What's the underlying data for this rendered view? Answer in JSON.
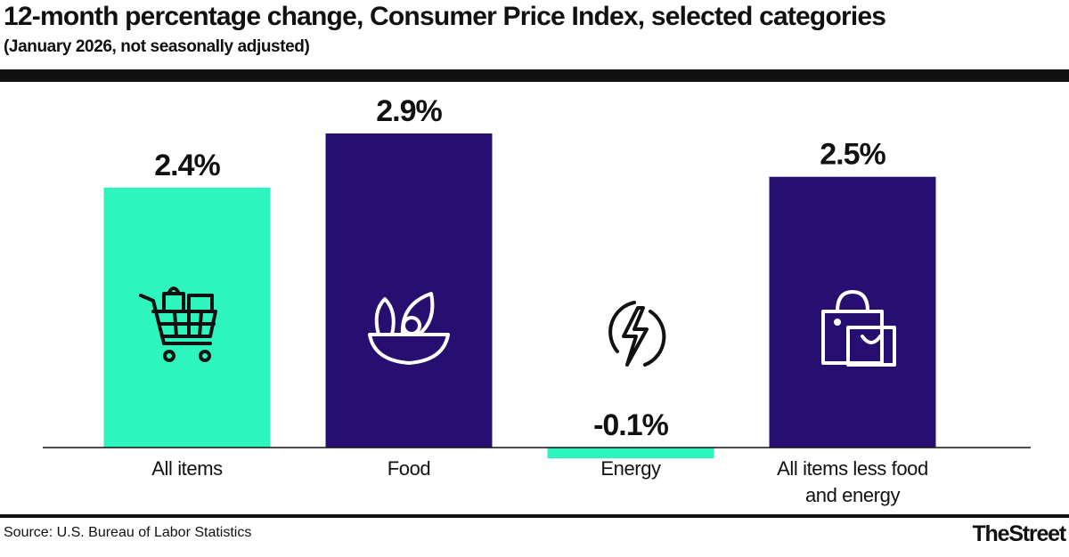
{
  "chart_data": {
    "type": "bar",
    "title": "12-month percentage change, Consumer Price Index, selected categories",
    "subtitle": "(January 2026, not seasonally adjusted)",
    "categories": [
      "All items",
      "Food",
      "Energy",
      "All items less food and energy"
    ],
    "values": [
      2.4,
      2.9,
      -0.1,
      2.5
    ],
    "value_labels": [
      "2.4%",
      "2.9%",
      "-0.1%",
      "2.5%"
    ],
    "colors": [
      "#2ef5bd",
      "#260f70",
      "#2ef5bd",
      "#260f70"
    ],
    "source": "Source: U.S. Bureau of Labor Statistics",
    "brand": "TheStreet"
  }
}
